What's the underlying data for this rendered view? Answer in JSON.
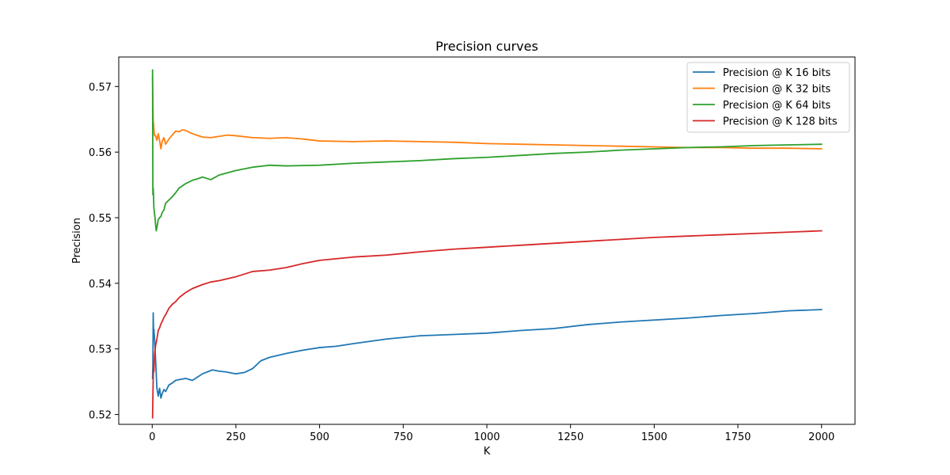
{
  "chart_data": {
    "type": "line",
    "title": "Precision curves",
    "xlabel": "K",
    "ylabel": "Precision",
    "xlim": [
      -100,
      2100
    ],
    "ylim": [
      0.5185,
      0.5745
    ],
    "xticks": [
      0,
      250,
      500,
      750,
      1000,
      1250,
      1500,
      1750,
      2000
    ],
    "yticks": [
      0.52,
      0.53,
      0.54,
      0.55,
      0.56,
      0.57
    ],
    "ytick_labels": [
      "0.52",
      "0.53",
      "0.54",
      "0.55",
      "0.56",
      "0.57"
    ],
    "grid": false,
    "legend_position": "top-right",
    "series": [
      {
        "name": "Precision @ K 16 bits",
        "color": "#1f77b4",
        "x": [
          1,
          2,
          3,
          4,
          5,
          7,
          10,
          14,
          18,
          22,
          26,
          30,
          35,
          40,
          50,
          60,
          70,
          80,
          100,
          120,
          150,
          180,
          200,
          220,
          250,
          275,
          300,
          325,
          350,
          400,
          450,
          500,
          550,
          600,
          700,
          800,
          900,
          1000,
          1100,
          1200,
          1300,
          1400,
          1500,
          1600,
          1700,
          1800,
          1900,
          2000
        ],
        "y": [
          0.5255,
          0.5275,
          0.5355,
          0.5325,
          0.533,
          0.5315,
          0.5285,
          0.524,
          0.5228,
          0.524,
          0.5225,
          0.5232,
          0.5238,
          0.5235,
          0.5245,
          0.5248,
          0.5252,
          0.5253,
          0.5255,
          0.5252,
          0.5262,
          0.5268,
          0.5266,
          0.5265,
          0.5262,
          0.5264,
          0.527,
          0.5282,
          0.5287,
          0.5293,
          0.5298,
          0.5302,
          0.5304,
          0.5308,
          0.5315,
          0.532,
          0.5322,
          0.5324,
          0.5328,
          0.5331,
          0.5337,
          0.5341,
          0.5344,
          0.5347,
          0.5351,
          0.5354,
          0.5358,
          0.536
        ]
      },
      {
        "name": "Precision @ K 32 bits",
        "color": "#ff7f0e",
        "x": [
          1,
          2,
          3,
          4,
          5,
          7,
          10,
          14,
          18,
          22,
          26,
          30,
          35,
          40,
          50,
          60,
          70,
          80,
          90,
          100,
          120,
          150,
          175,
          200,
          225,
          250,
          300,
          350,
          400,
          450,
          500,
          600,
          700,
          800,
          900,
          1000,
          1100,
          1200,
          1300,
          1400,
          1500,
          1600,
          1700,
          1800,
          1900,
          2000
        ],
        "y": [
          0.5715,
          0.568,
          0.5645,
          0.5645,
          0.5635,
          0.5625,
          0.5625,
          0.5618,
          0.5628,
          0.5618,
          0.5605,
          0.5617,
          0.5622,
          0.5612,
          0.562,
          0.5626,
          0.5632,
          0.5631,
          0.5634,
          0.5633,
          0.5628,
          0.5623,
          0.5622,
          0.5624,
          0.5626,
          0.5625,
          0.5622,
          0.5621,
          0.5622,
          0.562,
          0.5617,
          0.5616,
          0.5617,
          0.5616,
          0.5615,
          0.5613,
          0.5612,
          0.5611,
          0.561,
          0.5609,
          0.5608,
          0.5607,
          0.5607,
          0.5606,
          0.5606,
          0.5605
        ]
      },
      {
        "name": "Precision @ K 64 bits",
        "color": "#2ca02c",
        "x": [
          1,
          2,
          3,
          4,
          5,
          6,
          8,
          10,
          12,
          15,
          18,
          22,
          26,
          30,
          35,
          40,
          50,
          60,
          70,
          80,
          100,
          120,
          140,
          150,
          175,
          200,
          250,
          300,
          350,
          400,
          500,
          600,
          700,
          800,
          900,
          1000,
          1100,
          1200,
          1300,
          1400,
          1500,
          1600,
          1700,
          1800,
          1900,
          2000
        ],
        "y": [
          0.5725,
          0.5535,
          0.5545,
          0.5532,
          0.5515,
          0.551,
          0.5502,
          0.549,
          0.548,
          0.5488,
          0.5497,
          0.55,
          0.5502,
          0.5508,
          0.5512,
          0.5522,
          0.5527,
          0.5532,
          0.5538,
          0.5545,
          0.5552,
          0.5557,
          0.556,
          0.5562,
          0.5558,
          0.5565,
          0.5572,
          0.5577,
          0.558,
          0.5579,
          0.558,
          0.5583,
          0.5585,
          0.5587,
          0.559,
          0.5592,
          0.5595,
          0.5598,
          0.56,
          0.5603,
          0.5605,
          0.5607,
          0.5608,
          0.561,
          0.5611,
          0.5612
        ]
      },
      {
        "name": "Precision @ K 128 bits",
        "color": "#d62728",
        "x": [
          1,
          2,
          3,
          4,
          5,
          7,
          10,
          14,
          18,
          22,
          26,
          30,
          35,
          40,
          50,
          60,
          70,
          80,
          90,
          100,
          120,
          150,
          175,
          200,
          250,
          300,
          350,
          400,
          450,
          500,
          600,
          700,
          800,
          900,
          1000,
          1100,
          1200,
          1300,
          1400,
          1500,
          1600,
          1700,
          1800,
          1900,
          2000
        ],
        "y": [
          0.5195,
          0.5225,
          0.5255,
          0.528,
          0.5265,
          0.529,
          0.5305,
          0.5315,
          0.5328,
          0.5332,
          0.5338,
          0.5342,
          0.5348,
          0.5352,
          0.5362,
          0.5368,
          0.5372,
          0.5378,
          0.5382,
          0.5386,
          0.5392,
          0.5398,
          0.5402,
          0.5404,
          0.541,
          0.5418,
          0.542,
          0.5424,
          0.543,
          0.5435,
          0.544,
          0.5443,
          0.5448,
          0.5452,
          0.5455,
          0.5458,
          0.5461,
          0.5464,
          0.5467,
          0.547,
          0.5472,
          0.5474,
          0.5476,
          0.5478,
          0.548
        ]
      }
    ]
  }
}
